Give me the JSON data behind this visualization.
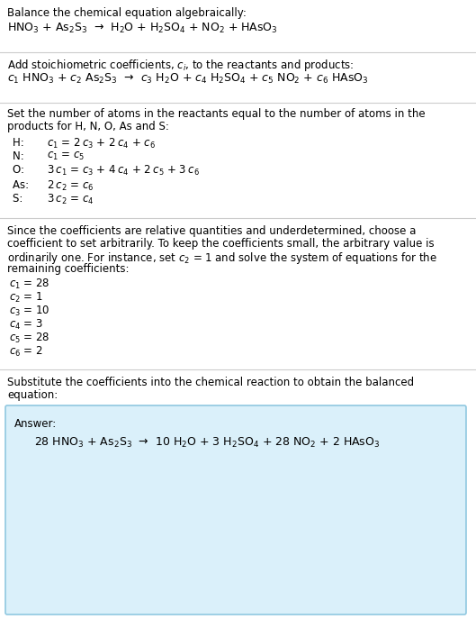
{
  "title_line": "Balance the chemical equation algebraically:",
  "eq1": "HNO$_3$ + As$_2$S$_3$  →  H$_2$O + H$_2$SO$_4$ + NO$_2$ + HAsO$_3$",
  "section2_intro": "Add stoichiometric coefficients, $c_i$, to the reactants and products:",
  "eq2": "$c_1$ HNO$_3$ + $c_2$ As$_2$S$_3$  →  $c_3$ H$_2$O + $c_4$ H$_2$SO$_4$ + $c_5$ NO$_2$ + $c_6$ HAsO$_3$",
  "section3_intro1": "Set the number of atoms in the reactants equal to the number of atoms in the",
  "section3_intro2": "products for H, N, O, As and S:",
  "equations": [
    [
      "H: ",
      "$c_1$ = 2 $c_3$ + 2 $c_4$ + $c_6$"
    ],
    [
      "N: ",
      "$c_1$ = $c_5$"
    ],
    [
      "O: ",
      "3 $c_1$ = $c_3$ + 4 $c_4$ + 2 $c_5$ + 3 $c_6$"
    ],
    [
      "As: ",
      "2 $c_2$ = $c_6$"
    ],
    [
      "S: ",
      "3 $c_2$ = $c_4$"
    ]
  ],
  "section4_intro1": "Since the coefficients are relative quantities and underdetermined, choose a",
  "section4_intro2": "coefficient to set arbitrarily. To keep the coefficients small, the arbitrary value is",
  "section4_intro3": "ordinarily one. For instance, set $c_2$ = 1 and solve the system of equations for the",
  "section4_intro4": "remaining coefficients:",
  "coeffs": [
    "$c_1$ = 28",
    "$c_2$ = 1",
    "$c_3$ = 10",
    "$c_4$ = 3",
    "$c_5$ = 28",
    "$c_6$ = 2"
  ],
  "section5_intro1": "Substitute the coefficients into the chemical reaction to obtain the balanced",
  "section5_intro2": "equation:",
  "answer_label": "Answer:",
  "answer_eq": "28 HNO$_3$ + As$_2$S$_3$  →  10 H$_2$O + 3 H$_2$SO$_4$ + 28 NO$_2$ + 2 HAsO$_3$",
  "bg_color": "#ffffff",
  "box_bg": "#daf0fa",
  "box_border": "#90c8e0",
  "text_color": "#000000",
  "font_size": 8.5,
  "fig_width": 5.29,
  "fig_height": 6.87,
  "dpi": 100
}
